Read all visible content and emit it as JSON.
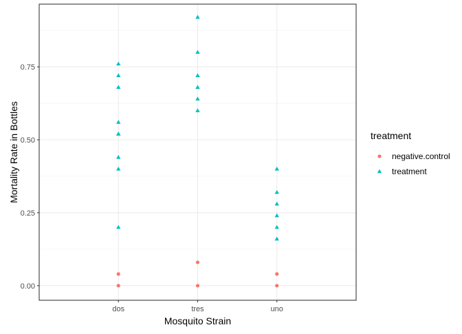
{
  "chart_data": {
    "type": "scatter",
    "title": "",
    "xlabel": "Mosquito Strain",
    "ylabel": "Mortality Rate in Bottles",
    "categories": [
      "dos",
      "tres",
      "uno"
    ],
    "ylim": [
      -0.05,
      0.965
    ],
    "yticks": [
      0.0,
      0.25,
      0.5,
      0.75
    ],
    "ytick_labels": [
      "0.00",
      "0.25",
      "0.50",
      "0.75"
    ],
    "grid": true,
    "legend": {
      "title": "treatment",
      "placement": "right"
    },
    "series": [
      {
        "name": "negative.control",
        "color": "#F8766D",
        "marker": "circle",
        "points": [
          {
            "x": "dos",
            "y": 0.04
          },
          {
            "x": "dos",
            "y": 0.0
          },
          {
            "x": "tres",
            "y": 0.08
          },
          {
            "x": "tres",
            "y": 0.0
          },
          {
            "x": "uno",
            "y": 0.04
          },
          {
            "x": "uno",
            "y": 0.0
          }
        ]
      },
      {
        "name": "treatment",
        "color": "#00BFC4",
        "marker": "triangle",
        "points": [
          {
            "x": "dos",
            "y": 0.76
          },
          {
            "x": "dos",
            "y": 0.72
          },
          {
            "x": "dos",
            "y": 0.68
          },
          {
            "x": "dos",
            "y": 0.56
          },
          {
            "x": "dos",
            "y": 0.52
          },
          {
            "x": "dos",
            "y": 0.52
          },
          {
            "x": "dos",
            "y": 0.44
          },
          {
            "x": "dos",
            "y": 0.4
          },
          {
            "x": "dos",
            "y": 0.2
          },
          {
            "x": "tres",
            "y": 0.92
          },
          {
            "x": "tres",
            "y": 0.8
          },
          {
            "x": "tres",
            "y": 0.72
          },
          {
            "x": "tres",
            "y": 0.68
          },
          {
            "x": "tres",
            "y": 0.64
          },
          {
            "x": "tres",
            "y": 0.6
          },
          {
            "x": "uno",
            "y": 0.4
          },
          {
            "x": "uno",
            "y": 0.32
          },
          {
            "x": "uno",
            "y": 0.28
          },
          {
            "x": "uno",
            "y": 0.24
          },
          {
            "x": "uno",
            "y": 0.2
          },
          {
            "x": "uno",
            "y": 0.16
          }
        ]
      }
    ]
  }
}
